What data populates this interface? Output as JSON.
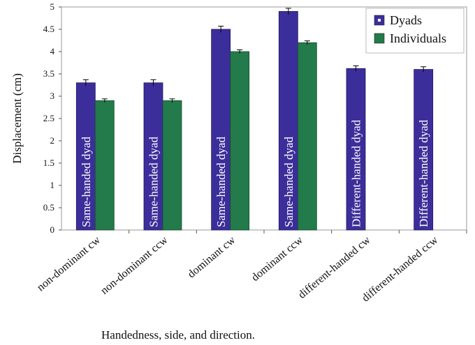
{
  "chart_data": {
    "type": "bar",
    "ylabel": "Displacement (cm)",
    "xlabel": "Handedness, side, and direction.",
    "ylim": [
      0,
      5
    ],
    "yticks": [
      "0",
      "0.5",
      "1",
      "1.5",
      "2",
      "2.5",
      "3",
      "3.5",
      "4",
      "4.5",
      "5"
    ],
    "categories": [
      "non-dominant cw",
      "non-dominant ccw",
      "dominant cw",
      "dominant ccw",
      "different-handed cw",
      "different-handed ccw"
    ],
    "series": [
      {
        "name": "Dyads",
        "color": "#3c2e9a",
        "values": [
          3.3,
          3.3,
          4.5,
          4.9,
          3.62,
          3.6
        ],
        "errors": [
          0.07,
          0.07,
          0.07,
          0.07,
          0.06,
          0.06
        ],
        "bar_labels": [
          "Same-handed dyad",
          "Same-handed dyad",
          "Same-handed dyad",
          "Same-handed dyad",
          "Different-handed dyad",
          "Different-handed dyad"
        ]
      },
      {
        "name": "Individuals",
        "color": "#237a4a",
        "values": [
          2.9,
          2.9,
          4.0,
          4.2,
          null,
          null
        ],
        "errors": [
          0.04,
          0.04,
          0.04,
          0.04,
          null,
          null
        ]
      }
    ],
    "legend": "top-right",
    "grid": false
  }
}
